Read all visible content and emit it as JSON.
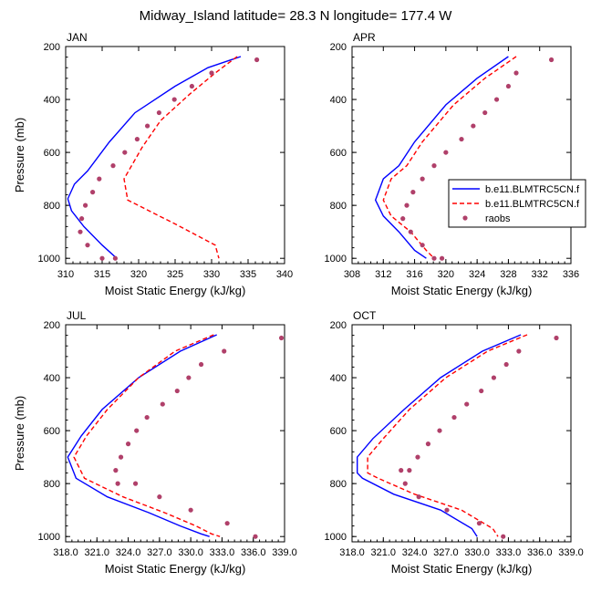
{
  "figure": {
    "title": "Midway_Island  latitude= 28.3 N longitude= 177.4 W"
  },
  "colors": {
    "model_a": "#0000ff",
    "model_b": "#ff0000",
    "raobs": "#b0406a",
    "frame": "#000000"
  },
  "legend": {
    "placement": "right of APR panel",
    "entries": [
      {
        "label": "b.e11.BLMTRC5CN.f",
        "style": "solid-line"
      },
      {
        "label": "b.e11.BLMTRC5CN.f",
        "style": "dashed-line"
      },
      {
        "label": "raobs",
        "style": "marker"
      }
    ]
  },
  "chart_data": [
    {
      "type": "line",
      "panel": "JAN",
      "title": "JAN",
      "xlabel": "Moist Static Energy (kJ/kg)",
      "ylabel": "Pressure (mb)",
      "xlim": [
        310,
        340
      ],
      "ylim": [
        1020,
        200
      ],
      "y_inverted": true,
      "xticks": [
        "310",
        "315",
        "320",
        "325",
        "330",
        "335",
        "340"
      ],
      "yticks": [
        "200",
        "400",
        "600",
        "800",
        "1000"
      ],
      "xtick_values": [
        310,
        315,
        320,
        325,
        330,
        335,
        340
      ],
      "ytick_values": [
        200,
        400,
        600,
        800,
        1000
      ],
      "series": [
        {
          "kind": "solid",
          "x": [
            334.0,
            329.5,
            325.0,
            319.5,
            316.0,
            313.0,
            311.2,
            310.3,
            310.8,
            312.5,
            315.0,
            317.0
          ],
          "y": [
            238,
            280,
            350,
            450,
            560,
            670,
            720,
            775,
            820,
            880,
            950,
            1000
          ]
        },
        {
          "kind": "dashed",
          "x": [
            333.5,
            330.5,
            327.0,
            323.0,
            320.5,
            318.0,
            318.5,
            325.0,
            330.5,
            331.0
          ],
          "y": [
            238,
            300,
            380,
            480,
            580,
            700,
            780,
            870,
            950,
            1000
          ]
        },
        {
          "kind": "dots",
          "x": [
            336.2,
            330.0,
            327.3,
            324.9,
            322.8,
            321.2,
            319.8,
            318.1,
            316.5,
            314.6,
            313.7,
            312.7,
            312.2,
            312.0,
            313.0,
            315.0,
            316.8
          ],
          "y": [
            250,
            300,
            350,
            400,
            450,
            500,
            550,
            600,
            650,
            700,
            750,
            800,
            850,
            900,
            950,
            1000,
            1000
          ]
        }
      ]
    },
    {
      "type": "line",
      "panel": "APR",
      "title": "APR",
      "xlabel": "Moist Static Energy (kJ/kg)",
      "ylabel": "",
      "xlim": [
        308,
        336
      ],
      "ylim": [
        1020,
        200
      ],
      "y_inverted": true,
      "xticks": [
        "308",
        "312",
        "316",
        "320",
        "324",
        "328",
        "332",
        "336"
      ],
      "yticks": [
        "200",
        "400",
        "600",
        "800",
        "1000"
      ],
      "xtick_values": [
        308,
        312,
        316,
        320,
        324,
        328,
        332,
        336
      ],
      "ytick_values": [
        200,
        400,
        600,
        800,
        1000
      ],
      "series": [
        {
          "kind": "solid",
          "x": [
            328.0,
            324.0,
            320.0,
            316.0,
            314.0,
            312.0,
            311.0,
            312.0,
            314.0,
            316.0,
            317.5
          ],
          "y": [
            238,
            320,
            420,
            560,
            650,
            700,
            780,
            840,
            900,
            970,
            1000
          ]
        },
        {
          "kind": "dashed",
          "x": [
            329.0,
            325.0,
            321.0,
            317.0,
            315.0,
            313.0,
            312.0,
            313.0,
            315.5,
            317.5,
            318.5
          ],
          "y": [
            238,
            320,
            420,
            560,
            650,
            700,
            780,
            840,
            900,
            970,
            1000
          ]
        },
        {
          "kind": "dots",
          "x": [
            333.5,
            329.0,
            328.0,
            326.5,
            325.0,
            323.5,
            322.0,
            320.0,
            318.5,
            317.0,
            315.8,
            315.0,
            314.5,
            315.5,
            317.0,
            318.5,
            319.5
          ],
          "y": [
            250,
            300,
            350,
            400,
            450,
            500,
            550,
            600,
            650,
            700,
            750,
            800,
            850,
            900,
            950,
            1000,
            1000
          ]
        }
      ]
    },
    {
      "type": "line",
      "panel": "JUL",
      "title": "JUL",
      "xlabel": "Moist Static Energy (kJ/kg)",
      "ylabel": "Pressure (mb)",
      "xlim": [
        318,
        339
      ],
      "ylim": [
        1020,
        200
      ],
      "y_inverted": true,
      "xticks": [
        "318.0",
        "321.0",
        "324.0",
        "327.0",
        "330.0",
        "333.0",
        "336.0",
        "339.0"
      ],
      "yticks": [
        "200",
        "400",
        "600",
        "800",
        "1000"
      ],
      "xtick_values": [
        318,
        321,
        324,
        327,
        330,
        333,
        336,
        339
      ],
      "ytick_values": [
        200,
        400,
        600,
        800,
        1000
      ],
      "series": [
        {
          "kind": "solid",
          "x": [
            332.5,
            329.0,
            325.0,
            321.5,
            319.5,
            318.2,
            319.0,
            322.0,
            326.0,
            329.0,
            331.0,
            331.8
          ],
          "y": [
            238,
            300,
            400,
            520,
            620,
            700,
            780,
            850,
            910,
            960,
            990,
            1000
          ]
        },
        {
          "kind": "dashed",
          "x": [
            332.2,
            328.5,
            325.0,
            322.0,
            320.0,
            318.8,
            319.8,
            323.5,
            327.5,
            330.5,
            332.0,
            332.8
          ],
          "y": [
            238,
            300,
            400,
            520,
            620,
            700,
            780,
            850,
            910,
            960,
            990,
            1000
          ]
        },
        {
          "kind": "dots",
          "x": [
            338.7,
            333.2,
            331.0,
            329.8,
            328.7,
            327.3,
            325.8,
            324.8,
            324.0,
            323.3,
            322.8,
            323.0,
            324.7,
            327.0,
            330.0,
            333.5,
            336.2
          ],
          "y": [
            250,
            300,
            350,
            400,
            450,
            500,
            550,
            600,
            650,
            700,
            750,
            800,
            800,
            850,
            900,
            950,
            1000
          ]
        }
      ]
    },
    {
      "type": "line",
      "panel": "OCT",
      "title": "OCT",
      "xlabel": "Moist Static Energy (kJ/kg)",
      "ylabel": "",
      "xlim": [
        318,
        339
      ],
      "ylim": [
        1020,
        200
      ],
      "y_inverted": true,
      "xticks": [
        "318.0",
        "321.0",
        "324.0",
        "327.0",
        "330.0",
        "333.0",
        "336.0",
        "339.0"
      ],
      "yticks": [
        "200",
        "400",
        "600",
        "800",
        "1000"
      ],
      "xtick_values": [
        318,
        321,
        324,
        327,
        330,
        333,
        336,
        339
      ],
      "ytick_values": [
        200,
        400,
        600,
        800,
        1000
      ],
      "series": [
        {
          "kind": "solid",
          "x": [
            334.2,
            330.5,
            326.5,
            323.0,
            320.0,
            318.5,
            318.5,
            319.0,
            322.0,
            326.5,
            329.5,
            330.0
          ],
          "y": [
            238,
            300,
            400,
            520,
            630,
            700,
            760,
            780,
            840,
            900,
            970,
            1000
          ]
        },
        {
          "kind": "dashed",
          "x": [
            334.8,
            331.0,
            327.0,
            323.5,
            321.0,
            319.5,
            319.5,
            320.5,
            324.0,
            328.5,
            331.5,
            332.0
          ],
          "y": [
            238,
            300,
            400,
            520,
            630,
            700,
            760,
            780,
            840,
            900,
            970,
            1000
          ]
        },
        {
          "kind": "dots",
          "x": [
            337.6,
            334.0,
            332.8,
            331.6,
            330.4,
            329.0,
            327.8,
            326.4,
            325.3,
            324.3,
            323.5,
            322.7,
            323.1,
            324.4,
            327.1,
            330.2,
            332.5
          ],
          "y": [
            250,
            300,
            350,
            400,
            450,
            500,
            550,
            600,
            650,
            700,
            750,
            750,
            800,
            850,
            900,
            950,
            1000
          ]
        }
      ]
    }
  ]
}
